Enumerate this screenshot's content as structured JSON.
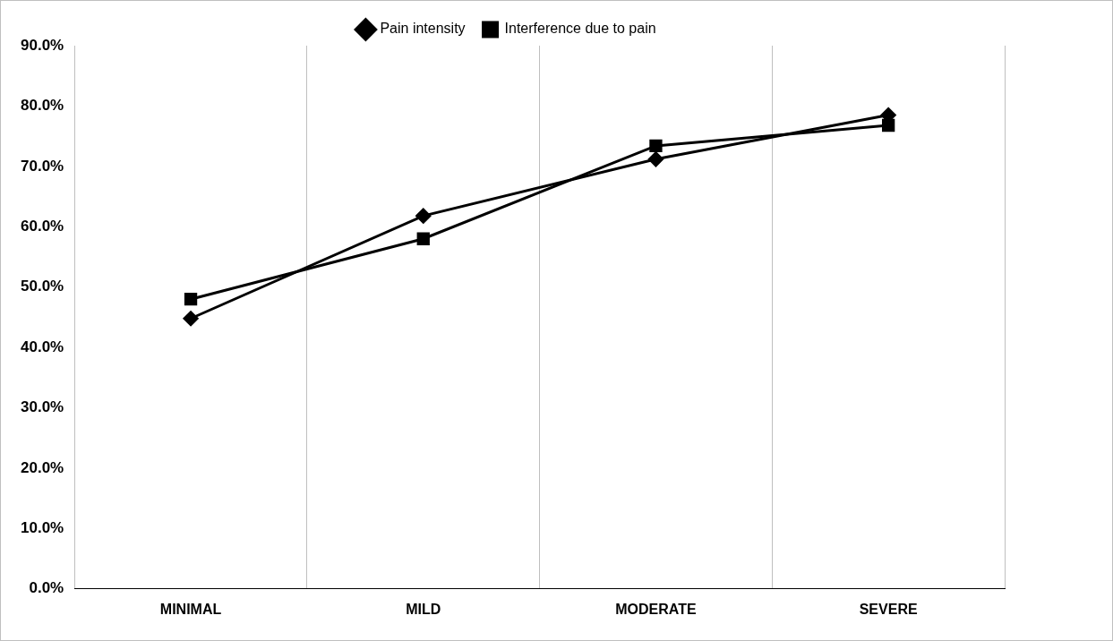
{
  "chart_data": {
    "type": "line",
    "categories": [
      "MINIMAL",
      "MILD",
      "MODERATE",
      "SEVERE"
    ],
    "series": [
      {
        "name": "Pain intensity",
        "color": "#000000",
        "marker": "diamond",
        "values": [
          44.8,
          61.8,
          71.2,
          78.5
        ]
      },
      {
        "name": "Interference due to pain",
        "color": "#000000",
        "marker": "square",
        "values": [
          48.0,
          58.0,
          73.4,
          76.8
        ]
      }
    ],
    "ylim": [
      0,
      90
    ],
    "yticks": [
      {
        "value": 0,
        "label": "0.0%"
      },
      {
        "value": 10,
        "label": "10.0%"
      },
      {
        "value": 20,
        "label": "20.0%"
      },
      {
        "value": 30,
        "label": "30.0%"
      },
      {
        "value": 40,
        "label": "40.0%"
      },
      {
        "value": 50,
        "label": "50.0%"
      },
      {
        "value": 60,
        "label": "60.0%"
      },
      {
        "value": 70,
        "label": "70.0%"
      },
      {
        "value": 80,
        "label": "80.0%"
      },
      {
        "value": 90,
        "label": "90.0%"
      }
    ],
    "grid": "x",
    "legend": "top"
  }
}
